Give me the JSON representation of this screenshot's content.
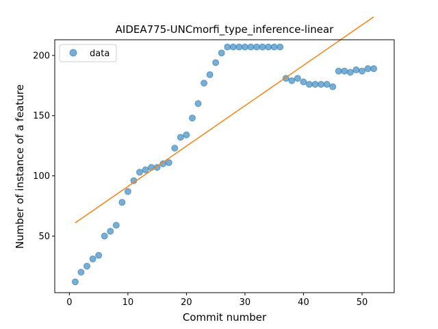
{
  "chart_data": {
    "type": "scatter",
    "title": "AIDEA775-UNCmorfi_type_inference-linear",
    "xlabel": "Commit number",
    "ylabel": "Number of instance of a feature",
    "xlim": [
      -2.5,
      55.5
    ],
    "ylim": [
      3,
      213
    ],
    "xticks": [
      0,
      10,
      20,
      30,
      40,
      50
    ],
    "yticks": [
      50,
      100,
      150,
      200
    ],
    "grid": false,
    "legend": {
      "placement": "upper-left",
      "entries": [
        "data"
      ]
    },
    "colors": {
      "data": "#1f77b4",
      "fit": "#ff7f0e"
    },
    "series": [
      {
        "name": "data",
        "kind": "scatter",
        "x": [
          1,
          2,
          3,
          4,
          5,
          6,
          7,
          8,
          9,
          10,
          11,
          12,
          13,
          14,
          15,
          16,
          17,
          18,
          19,
          20,
          21,
          22,
          23,
          24,
          25,
          26,
          27,
          28,
          29,
          30,
          31,
          32,
          33,
          34,
          35,
          36,
          37,
          38,
          39,
          40,
          41,
          42,
          43,
          44,
          45,
          46,
          47,
          48,
          49,
          50,
          51,
          52
        ],
        "y": [
          12,
          20,
          25,
          31,
          34,
          50,
          54,
          59,
          78,
          87,
          96,
          103,
          105,
          107,
          107,
          110,
          111,
          123,
          132,
          134,
          148,
          160,
          177,
          184,
          194,
          202,
          207,
          207,
          207,
          207,
          207,
          207,
          207,
          207,
          207,
          207,
          181,
          179,
          181,
          178,
          176,
          176,
          176,
          176,
          174,
          187,
          187,
          186,
          188,
          187,
          189,
          189
        ]
      },
      {
        "kind": "line",
        "x": [
          1,
          52
        ],
        "y": [
          61,
          232
        ]
      }
    ]
  }
}
